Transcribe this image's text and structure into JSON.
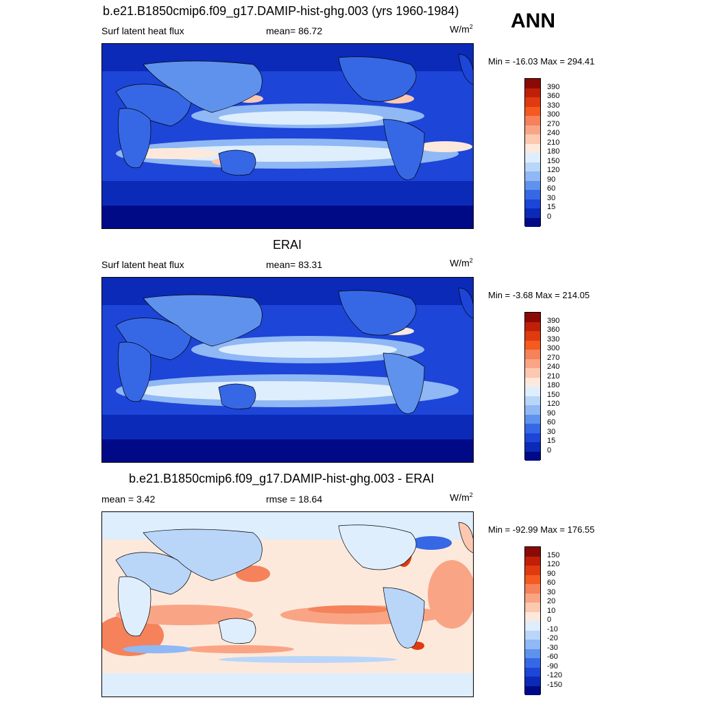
{
  "season": "ANN",
  "panels": [
    {
      "title": "b.e21.B1850cmip6.f09_g17.DAMIP-hist-ghg.003 (yrs 1960-1984)",
      "left_label": "Surf latent heat flux",
      "mid_label": "mean=  86.72",
      "units": "W/m",
      "units_sup": "2",
      "minmax": "Min = -16.03 Max = 294.41",
      "colorbar_labels": [
        "390",
        "360",
        "330",
        "300",
        "270",
        "240",
        "210",
        "180",
        "150",
        "120",
        "90",
        "60",
        "30",
        "15",
        "0"
      ],
      "colorbar_colors": [
        "#8b0a05",
        "#c02008",
        "#e03a10",
        "#f55a20",
        "#f5825a",
        "#f9a585",
        "#fcc8b0",
        "#fde9dc",
        "#deeefc",
        "#b9d6f9",
        "#8fb8f4",
        "#5f92ec",
        "#3668e6",
        "#1d45d8",
        "#0b2ab8",
        "#000a87"
      ]
    },
    {
      "title": "ERAI",
      "left_label": "Surf latent heat flux",
      "mid_label": "mean=  83.31",
      "units": "W/m",
      "units_sup": "2",
      "minmax": "Min =  -3.68 Max = 214.05",
      "colorbar_labels": [
        "390",
        "360",
        "330",
        "300",
        "270",
        "240",
        "210",
        "180",
        "150",
        "120",
        "90",
        "60",
        "30",
        "15",
        "0"
      ],
      "colorbar_colors": [
        "#8b0a05",
        "#c02008",
        "#e03a10",
        "#f55a20",
        "#f5825a",
        "#f9a585",
        "#fcc8b0",
        "#fde9dc",
        "#deeefc",
        "#b9d6f9",
        "#8fb8f4",
        "#5f92ec",
        "#3668e6",
        "#1d45d8",
        "#0b2ab8",
        "#000a87"
      ]
    },
    {
      "title": "b.e21.B1850cmip6.f09_g17.DAMIP-hist-ghg.003 - ERAI",
      "left_label": "mean =   3.42",
      "mid_label": "rmse =  18.64",
      "units": "W/m",
      "units_sup": "2",
      "minmax": "Min = -92.99 Max = 176.55",
      "colorbar_labels": [
        "150",
        "120",
        "90",
        "60",
        "30",
        "20",
        "10",
        "0",
        "-10",
        "-20",
        "-30",
        "-60",
        "-90",
        "-120",
        "-150"
      ],
      "colorbar_colors": [
        "#8b0a05",
        "#c02008",
        "#e03a10",
        "#f55a20",
        "#f5825a",
        "#f9a585",
        "#fcc8b0",
        "#fde9dc",
        "#deeefc",
        "#b9d6f9",
        "#8fb8f4",
        "#5f92ec",
        "#3668e6",
        "#1d45d8",
        "#0b2ab8",
        "#000a87"
      ]
    }
  ]
}
